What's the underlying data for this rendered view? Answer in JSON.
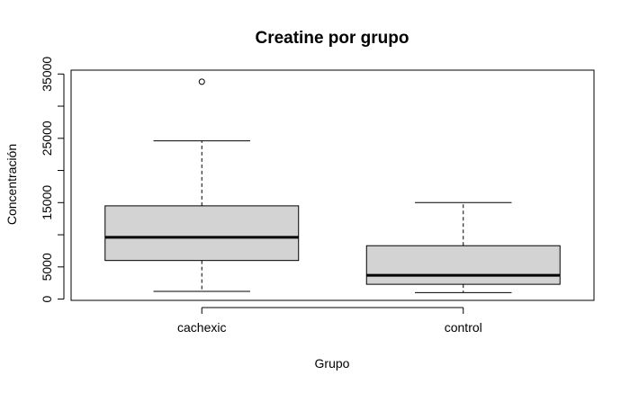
{
  "chart_data": {
    "type": "boxplot",
    "title": "Creatine por grupo",
    "xlabel": "Grupo",
    "ylabel": "Concentración",
    "categories": [
      "cachexic",
      "control"
    ],
    "y_ticks": [
      0,
      5000,
      15000,
      25000,
      35000
    ],
    "y_tick_labels": [
      "0",
      "5000",
      "15000",
      "25000",
      "35000"
    ],
    "y_tick_marks": [
      0,
      5000,
      10000,
      15000,
      20000,
      25000,
      30000,
      35000
    ],
    "ylim": [
      -200,
      35600
    ],
    "grid": false,
    "legend": "none",
    "boxes": [
      {
        "group": "cachexic",
        "whisker_low": 1200,
        "q1": 6000,
        "median": 9600,
        "q3": 14500,
        "whisker_high": 24600,
        "outliers": [
          33800
        ]
      },
      {
        "group": "control",
        "whisker_low": 1000,
        "q1": 2300,
        "median": 3700,
        "q3": 8300,
        "whisker_high": 15000,
        "outliers": []
      }
    ],
    "colors": {
      "box_fill": "#d3d3d3",
      "line": "#000000"
    }
  }
}
